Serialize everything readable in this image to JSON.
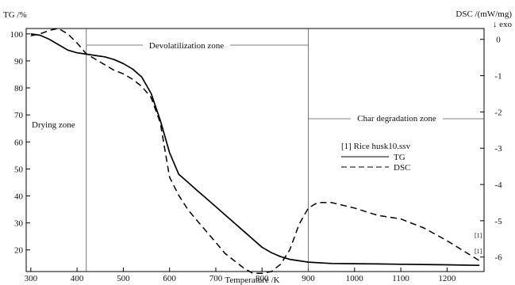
{
  "chart_data": {
    "type": "line",
    "y_left_label": "TG /%",
    "y_right_label": "DSC /(mW/mg)",
    "y_right_sublabel": "↓  exo",
    "xlabel": "Temperature /K",
    "x_ticks": [
      300,
      400,
      500,
      600,
      700,
      800,
      900,
      1000,
      1100,
      1200
    ],
    "y_left_ticks": [
      20,
      30,
      40,
      50,
      60,
      70,
      80,
      90,
      100
    ],
    "y_right_ticks": [
      0,
      -1,
      -2,
      -3,
      -4,
      -5,
      -6
    ],
    "xlim": [
      290,
      1280
    ],
    "ylim_left": [
      12,
      102
    ],
    "ylim_right": [
      -6.4,
      0.3
    ],
    "grid": false,
    "zone_boundaries": [
      420,
      900
    ],
    "zones": [
      {
        "label": "Drying zone"
      },
      {
        "label": "Devolatilization zone"
      },
      {
        "label": "Char degradation zone"
      }
    ],
    "legend": {
      "title": "[1] Rice husk10.ssv",
      "entries": [
        {
          "name": "TG",
          "style": "solid"
        },
        {
          "name": "DSC",
          "style": "dashed"
        }
      ]
    },
    "curve_tags": [
      "[1]",
      "[1]"
    ],
    "series": [
      {
        "name": "TG",
        "axis": "left",
        "style": "solid",
        "x": [
          300,
          320,
          340,
          360,
          380,
          400,
          420,
          440,
          460,
          480,
          500,
          520,
          540,
          560,
          580,
          600,
          620,
          640,
          660,
          680,
          700,
          720,
          740,
          760,
          780,
          800,
          820,
          840,
          860,
          880,
          900,
          950,
          1000,
          1050,
          1100,
          1150,
          1200,
          1270
        ],
        "y": [
          100,
          99.5,
          98,
          96,
          94,
          93,
          92.5,
          92,
          91.5,
          90.5,
          89,
          87,
          84,
          78,
          68,
          56,
          48,
          45,
          42,
          39,
          36,
          33,
          30,
          27,
          24,
          21,
          19,
          17.5,
          16.5,
          16,
          15.5,
          15,
          14.9,
          14.8,
          14.7,
          14.6,
          14.5,
          14.3
        ]
      },
      {
        "name": "DSC",
        "axis": "right",
        "style": "dashed",
        "x": [
          300,
          320,
          340,
          360,
          380,
          400,
          420,
          440,
          460,
          480,
          500,
          520,
          540,
          560,
          580,
          600,
          620,
          640,
          660,
          680,
          700,
          720,
          740,
          760,
          780,
          800,
          820,
          840,
          860,
          880,
          900,
          920,
          950,
          1000,
          1050,
          1100,
          1150,
          1200,
          1270
        ],
        "y": [
          0.1,
          0.15,
          0.25,
          0.3,
          0.15,
          -0.1,
          -0.4,
          -0.55,
          -0.7,
          -0.85,
          -0.95,
          -1.1,
          -1.3,
          -1.6,
          -2.3,
          -3.8,
          -4.3,
          -4.7,
          -5.0,
          -5.3,
          -5.6,
          -5.9,
          -6.1,
          -6.3,
          -6.45,
          -6.45,
          -6.4,
          -6.2,
          -5.8,
          -5.1,
          -4.65,
          -4.5,
          -4.5,
          -4.65,
          -4.85,
          -4.95,
          -5.2,
          -5.55,
          -6.1
        ]
      }
    ]
  }
}
